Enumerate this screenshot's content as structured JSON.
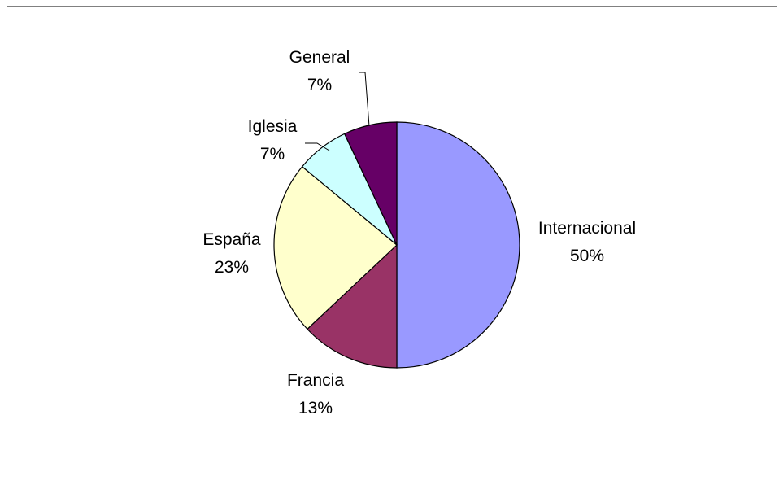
{
  "chart_data": {
    "type": "pie",
    "categories": [
      "Internacional",
      "Francia",
      "España",
      "Iglesia",
      "General"
    ],
    "values": [
      50,
      13,
      23,
      7,
      7
    ],
    "value_labels": [
      "50%",
      "13%",
      "23%",
      "7%",
      "7%"
    ],
    "colors": [
      "#9999FF",
      "#993366",
      "#FFFFCC",
      "#CCFFFF",
      "#660066"
    ],
    "title": "",
    "legend": "none",
    "start_angle_degrees": 0,
    "direction": "clockwise"
  }
}
